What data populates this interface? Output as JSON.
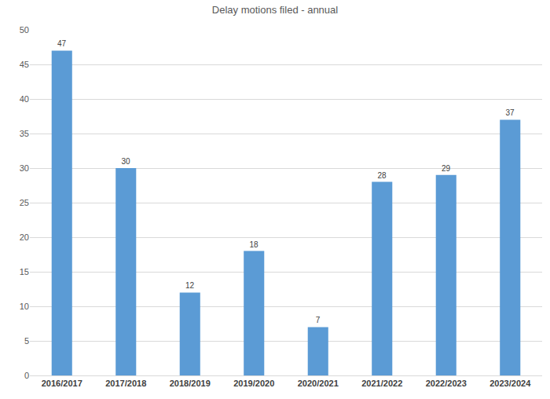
{
  "chart_data": {
    "type": "bar",
    "title": "Delay motions filed - annual",
    "categories": [
      "2016/2017",
      "2017/2018",
      "2018/2019",
      "2019/2020",
      "2020/2021",
      "2021/2022",
      "2022/2023",
      "2023/2024"
    ],
    "values": [
      47,
      30,
      12,
      18,
      7,
      28,
      29,
      37
    ],
    "color": "#5b9bd5",
    "ylim": [
      0,
      50
    ],
    "yticks": [
      0,
      5,
      10,
      15,
      20,
      25,
      30,
      35,
      40,
      45,
      50
    ],
    "grid": true,
    "data_labels": true
  }
}
